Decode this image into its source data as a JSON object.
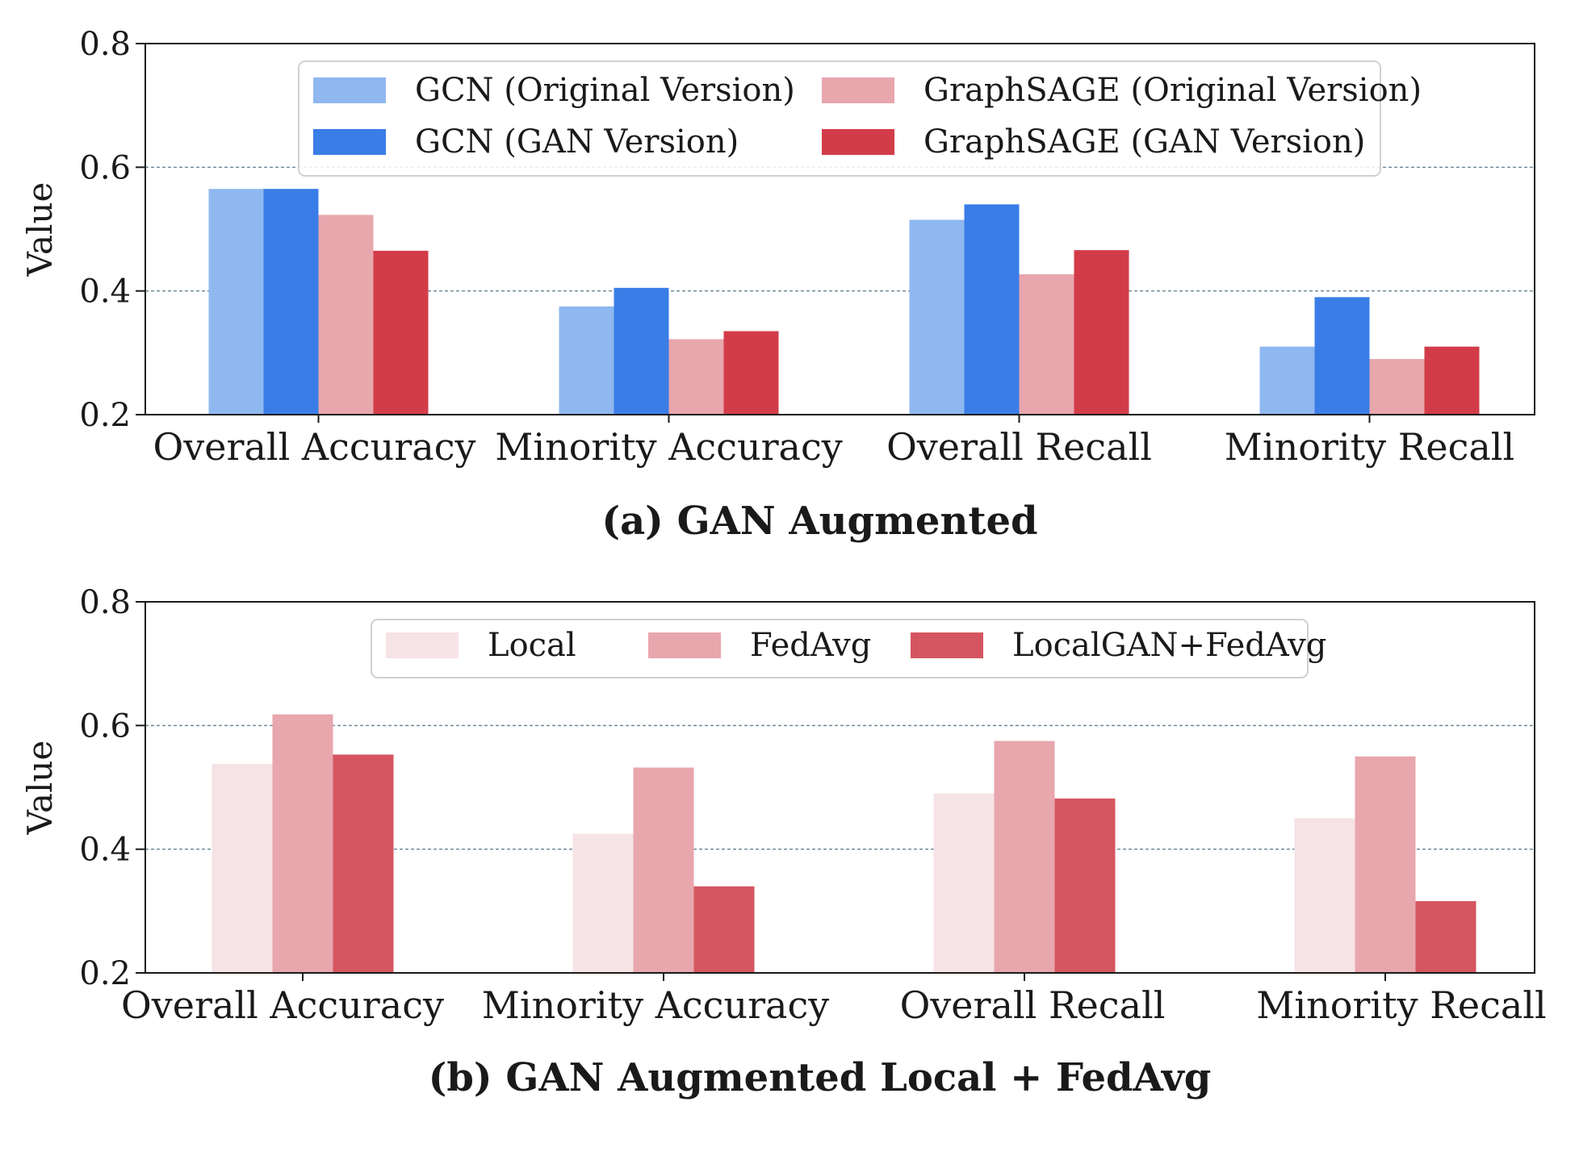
{
  "chart_data": [
    {
      "type": "bar",
      "caption": "(a) GAN Augmented",
      "ylabel": "Value",
      "xlabel": "",
      "ylim": [
        0.2,
        0.8
      ],
      "yticks": [
        "0.2",
        "0.4",
        "0.6",
        "0.8"
      ],
      "grid": "horizontal dashed at 0.4 and 0.6",
      "legend_position": "top-center",
      "legend_columns": 2,
      "categories": [
        "Overall Accuracy",
        "Minority Accuracy",
        "Overall Recall",
        "Minority Recall"
      ],
      "series": [
        {
          "name": "GCN (Original Version)",
          "color": "#8fb8f0",
          "values": [
            0.565,
            0.375,
            0.515,
            0.31
          ]
        },
        {
          "name": "GCN (GAN Version)",
          "color": "#3a7de6",
          "values": [
            0.565,
            0.405,
            0.54,
            0.39
          ]
        },
        {
          "name": "GraphSAGE (Original Version)",
          "color": "#e8a6ad",
          "values": [
            0.523,
            0.322,
            0.427,
            0.29
          ]
        },
        {
          "name": "GraphSAGE (GAN Version)",
          "color": "#d23c48",
          "values": [
            0.465,
            0.335,
            0.466,
            0.31
          ]
        }
      ]
    },
    {
      "type": "bar",
      "caption": "(b) GAN Augmented Local + FedAvg",
      "ylabel": "Value",
      "xlabel": "",
      "ylim": [
        0.2,
        0.8
      ],
      "yticks": [
        "0.2",
        "0.4",
        "0.6",
        "0.8"
      ],
      "grid": "horizontal dashed at 0.4 and 0.6",
      "legend_position": "top-center",
      "legend_columns": 3,
      "categories": [
        "Overall Accuracy",
        "Minority Accuracy",
        "Overall Recall",
        "Minority Recall"
      ],
      "series": [
        {
          "name": "Local",
          "color": "#f6e3e5",
          "values": [
            0.538,
            0.425,
            0.49,
            0.45
          ]
        },
        {
          "name": "FedAvg",
          "color": "#e8a6ad",
          "values": [
            0.618,
            0.532,
            0.575,
            0.55
          ]
        },
        {
          "name": "LocalGAN+FedAvg",
          "color": "#d55660",
          "values": [
            0.553,
            0.34,
            0.482,
            0.316
          ]
        }
      ]
    }
  ]
}
